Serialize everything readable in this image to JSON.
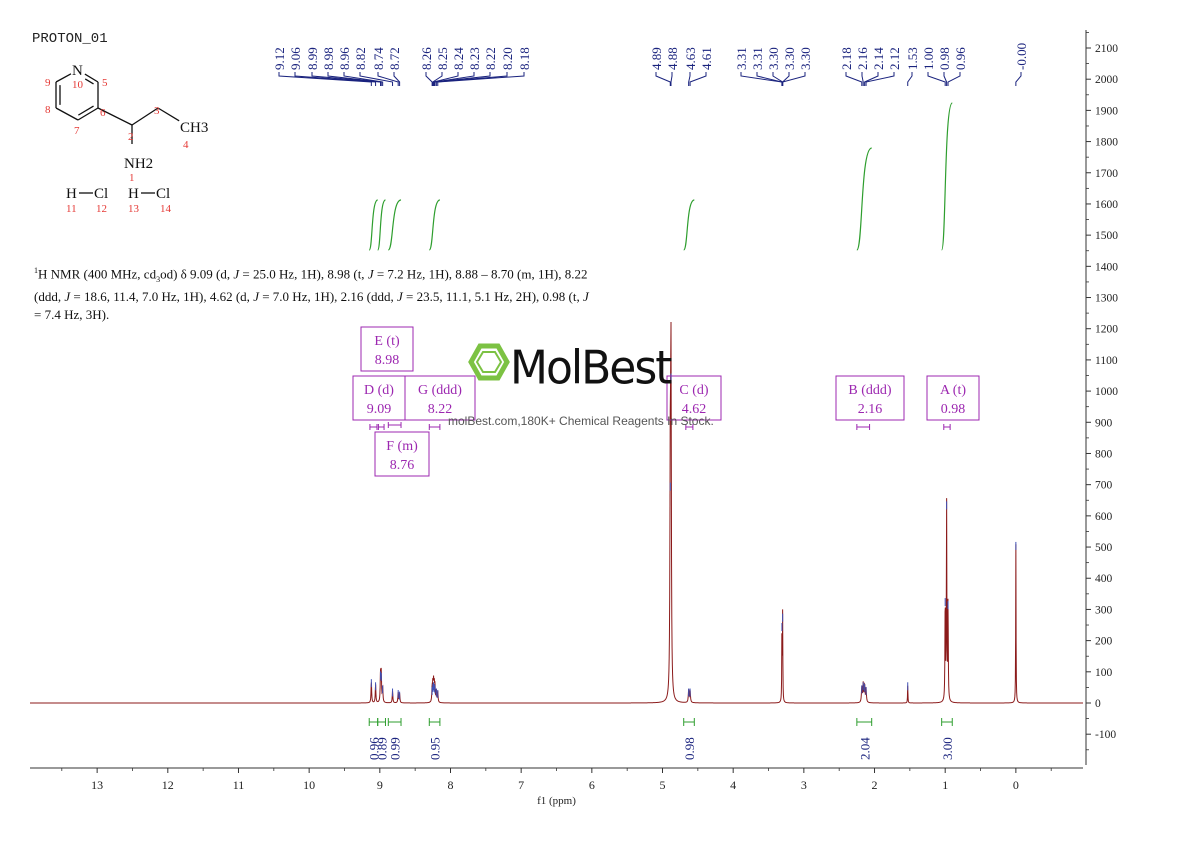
{
  "page": {
    "title": "PROTON_01",
    "description_parts": [
      {
        "t": "sup",
        "v": "1"
      },
      {
        "t": "text",
        "v": "H NMR (400 MHz, cd"
      },
      {
        "t": "sub",
        "v": "3"
      },
      {
        "t": "text",
        "v": "od) δ 9.09 (d, "
      },
      {
        "t": "i",
        "v": "J"
      },
      {
        "t": "text",
        "v": " = 25.0 Hz, 1H), 8.98 (t, "
      },
      {
        "t": "i",
        "v": "J"
      },
      {
        "t": "text",
        "v": " = 7.2 Hz, 1H), 8.88 – 8.70 (m, 1H), 8.22 (ddd, "
      },
      {
        "t": "i",
        "v": "J"
      },
      {
        "t": "text",
        "v": " = 18.6, 11.4, 7.0 Hz, 1H), 4.62 (d, "
      },
      {
        "t": "i",
        "v": "J"
      },
      {
        "t": "text",
        "v": " = 7.0 Hz, 1H), 2.16 (ddd, "
      },
      {
        "t": "i",
        "v": "J"
      },
      {
        "t": "text",
        "v": " = 23.5, 11.1, 5.1 Hz, 2H), 0.98 (t, "
      },
      {
        "t": "i",
        "v": "J"
      },
      {
        "t": "text",
        "v": " = 7.4 Hz, 3H)."
      }
    ],
    "watermark": {
      "brand": "MolBest",
      "tagline": "molBest.com,180K+ Chemical Reagents In Stock."
    }
  },
  "molecule": {
    "atoms": [
      {
        "label": "N",
        "num": "10"
      },
      {
        "label": "",
        "num": "5"
      },
      {
        "label": "",
        "num": "6"
      },
      {
        "label": "",
        "num": "7"
      },
      {
        "label": "",
        "num": "8"
      },
      {
        "label": "",
        "num": "9"
      },
      {
        "label": "",
        "num": "2"
      },
      {
        "label": "",
        "num": "3"
      },
      {
        "label": "CH3",
        "num": "4"
      },
      {
        "label": "NH2",
        "num": "1"
      },
      {
        "label": "H",
        "num": "11"
      },
      {
        "label": "Cl",
        "num": "12"
      },
      {
        "label": "H",
        "num": "13"
      },
      {
        "label": "Cl",
        "num": "14"
      }
    ]
  },
  "chart_data": {
    "type": "line",
    "xlabel": "f1 (ppm)",
    "x_range": [
      13.95,
      -0.95
    ],
    "x_ticks": [
      "13",
      "12",
      "11",
      "10",
      "9",
      "8",
      "7",
      "6",
      "5",
      "4",
      "3",
      "2",
      "1",
      "0"
    ],
    "y_range": [
      -200,
      2150
    ],
    "y_ticks": [
      "2100",
      "2000",
      "1900",
      "1800",
      "1700",
      "1600",
      "1500",
      "1400",
      "1300",
      "1200",
      "1100",
      "1000",
      "900",
      "800",
      "700",
      "600",
      "500",
      "400",
      "300",
      "200",
      "100",
      "0",
      "-100"
    ],
    "spectrum_color": "#8b1a1a",
    "peak_label_color": "#1a237e",
    "annotation_color": "#9c27b0",
    "integral_color": "#2e9e2e",
    "peaks": [
      {
        "shift": 9.12,
        "height": 70,
        "width": 0.005
      },
      {
        "shift": 9.06,
        "height": 60,
        "width": 0.005
      },
      {
        "shift": 8.99,
        "height": 95,
        "width": 0.005
      },
      {
        "shift": 8.98,
        "height": 90,
        "width": 0.005
      },
      {
        "shift": 8.96,
        "height": 50,
        "width": 0.005
      },
      {
        "shift": 8.82,
        "height": 40,
        "width": 0.005
      },
      {
        "shift": 8.74,
        "height": 35,
        "width": 0.005
      },
      {
        "shift": 8.72,
        "height": 30,
        "width": 0.005
      },
      {
        "shift": 8.26,
        "height": 45,
        "width": 0.005
      },
      {
        "shift": 8.25,
        "height": 55,
        "width": 0.005
      },
      {
        "shift": 8.24,
        "height": 60,
        "width": 0.005
      },
      {
        "shift": 8.23,
        "height": 55,
        "width": 0.005
      },
      {
        "shift": 8.22,
        "height": 50,
        "width": 0.005
      },
      {
        "shift": 8.2,
        "height": 40,
        "width": 0.005
      },
      {
        "shift": 8.18,
        "height": 35,
        "width": 0.005
      },
      {
        "shift": 4.89,
        "height": 700,
        "width": 0.006
      },
      {
        "shift": 4.88,
        "height": 1050,
        "width": 0.006
      },
      {
        "shift": 4.63,
        "height": 40,
        "width": 0.006
      },
      {
        "shift": 4.61,
        "height": 40,
        "width": 0.006
      },
      {
        "shift": 3.31,
        "height": 250,
        "width": 0.003
      },
      {
        "shift": 3.3,
        "height": 280,
        "width": 0.003
      },
      {
        "shift": 2.18,
        "height": 50,
        "width": 0.006
      },
      {
        "shift": 2.16,
        "height": 60,
        "width": 0.006
      },
      {
        "shift": 2.14,
        "height": 55,
        "width": 0.006
      },
      {
        "shift": 2.12,
        "height": 45,
        "width": 0.006
      },
      {
        "shift": 1.53,
        "height": 60,
        "width": 0.003
      },
      {
        "shift": 1.0,
        "height": 330,
        "width": 0.004
      },
      {
        "shift": 0.98,
        "height": 640,
        "width": 0.004
      },
      {
        "shift": 0.96,
        "height": 320,
        "width": 0.004
      },
      {
        "shift": 0.0,
        "height": 510,
        "width": 0.003
      }
    ],
    "peak_labels": [
      {
        "group": 1,
        "labels": [
          "9.12",
          "9.06",
          "8.99",
          "8.98",
          "8.96",
          "8.82",
          "8.74",
          "8.72"
        ]
      },
      {
        "group": 2,
        "labels": [
          "8.26",
          "8.25",
          "8.24",
          "8.23",
          "8.22",
          "8.20",
          "8.18"
        ]
      },
      {
        "group": 3,
        "labels": [
          "4.89",
          "4.88",
          "4.63",
          "4.61"
        ]
      },
      {
        "group": 4,
        "labels": [
          "3.31",
          "3.31",
          "3.30",
          "3.30",
          "3.30"
        ]
      },
      {
        "group": 5,
        "labels": [
          "2.18",
          "2.16",
          "2.14",
          "2.12",
          "1.53",
          "1.00",
          "0.98",
          "0.96"
        ]
      },
      {
        "group": 6,
        "labels": [
          "-0.00"
        ]
      }
    ],
    "multiplets": [
      {
        "letter_line": "E (t)",
        "shift_line": "8.98",
        "shift": 8.98,
        "range": [
          9.02,
          8.94
        ]
      },
      {
        "letter_line": "D (d)",
        "shift_line": "9.09",
        "shift": 9.09,
        "range": [
          9.14,
          9.04
        ]
      },
      {
        "letter_line": "G (ddd)",
        "shift_line": "8.22",
        "shift": 8.22,
        "range": [
          8.3,
          8.15
        ]
      },
      {
        "letter_line": "F (m)",
        "shift_line": "8.76",
        "shift": 8.76,
        "range": [
          8.88,
          8.7
        ]
      },
      {
        "letter_line": "C (d)",
        "shift_line": "4.62",
        "shift": 4.62,
        "range": [
          4.67,
          4.57
        ]
      },
      {
        "letter_line": "B (ddd)",
        "shift_line": "2.16",
        "shift": 2.16,
        "range": [
          2.25,
          2.07
        ]
      },
      {
        "letter_line": "A (t)",
        "shift_line": "0.98",
        "shift": 0.98,
        "range": [
          1.02,
          0.93
        ]
      }
    ],
    "integrals": [
      {
        "value": "0.96",
        "range": [
          9.15,
          9.03
        ]
      },
      {
        "value": "0.89",
        "range": [
          9.03,
          8.92
        ]
      },
      {
        "value": "0.99",
        "range": [
          8.88,
          8.7
        ]
      },
      {
        "value": "0.95",
        "range": [
          8.3,
          8.15
        ]
      },
      {
        "value": "0.98",
        "range": [
          4.7,
          4.55
        ]
      },
      {
        "value": "2.04",
        "range": [
          2.25,
          2.04
        ]
      },
      {
        "value": "3.00",
        "range": [
          1.05,
          0.9
        ]
      }
    ]
  }
}
